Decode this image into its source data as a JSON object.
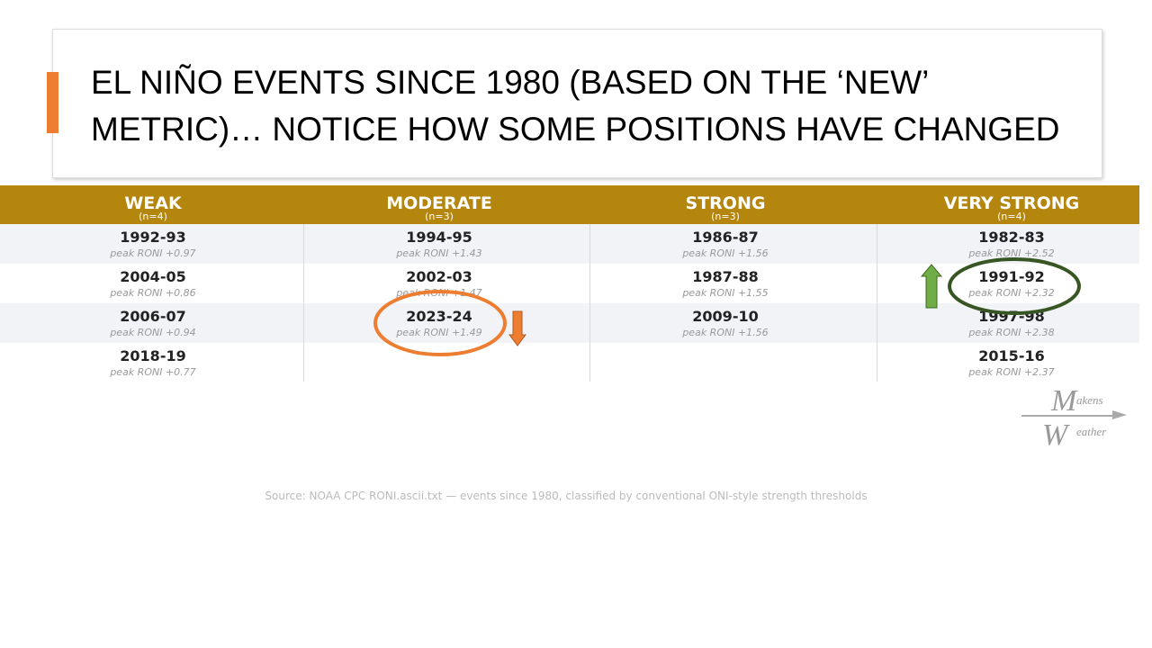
{
  "title": "EL NIÑO EVENTS SINCE 1980 (BASED ON THE ‘NEW’ METRIC)… NOTICE HOW SOME POSITIONS HAVE CHANGED",
  "table": {
    "columns": [
      {
        "name": "WEAK",
        "count": "(n=4)",
        "events": [
          {
            "years": "1992-93",
            "peak": "peak RONI +0.97"
          },
          {
            "years": "2004-05",
            "peak": "peak RONI +0.86"
          },
          {
            "years": "2006-07",
            "peak": "peak RONI +0.94"
          },
          {
            "years": "2018-19",
            "peak": "peak RONI +0.77"
          }
        ]
      },
      {
        "name": "MODERATE",
        "count": "(n=3)",
        "events": [
          {
            "years": "1994-95",
            "peak": "peak RONI +1.43"
          },
          {
            "years": "2002-03",
            "peak": "peak RONI +1.47"
          },
          {
            "years": "2023-24",
            "peak": "peak RONI +1.49"
          }
        ]
      },
      {
        "name": "STRONG",
        "count": "(n=3)",
        "events": [
          {
            "years": "1986-87",
            "peak": "peak RONI +1.56"
          },
          {
            "years": "1987-88",
            "peak": "peak RONI +1.55"
          },
          {
            "years": "2009-10",
            "peak": "peak RONI +1.56"
          }
        ]
      },
      {
        "name": "VERY STRONG",
        "count": "(n=4)",
        "events": [
          {
            "years": "1982-83",
            "peak": "peak RONI +2.52"
          },
          {
            "years": "1991-92",
            "peak": "peak RONI +2.32"
          },
          {
            "years": "1997-98",
            "peak": "peak RONI +2.38"
          },
          {
            "years": "2015-16",
            "peak": "peak RONI +2.37"
          }
        ]
      }
    ]
  },
  "source": "Source: NOAA CPC RONI.ascii.txt — events since 1980, classified by conventional ONI-style strength thresholds",
  "logo": {
    "m": "M",
    "akens": "akens",
    "w": "W",
    "eather": "eather"
  }
}
